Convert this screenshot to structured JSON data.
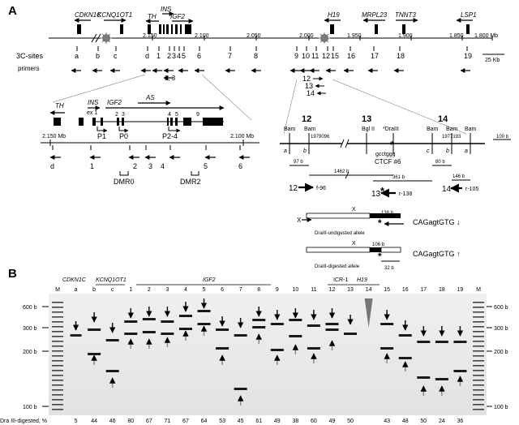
{
  "panel_a": {
    "label": "A",
    "genes": [
      {
        "name": "CDKN1C"
      },
      {
        "name": "KCNQ1OT1"
      },
      {
        "name": "TH"
      },
      {
        "name": "INS"
      },
      {
        "name": "IGF2"
      },
      {
        "name": "H19"
      },
      {
        "name": "MRPL23"
      },
      {
        "name": "TNNT3"
      },
      {
        "name": "LSP1"
      }
    ],
    "coord_ticks": [
      "2.150",
      "2.100",
      "2.050",
      "2.000",
      "1.950",
      "1.900",
      "1.850",
      "1.800 Mb"
    ],
    "sites_label": "3C-sites",
    "sites": [
      "a",
      "b",
      "c",
      "d",
      "1",
      "2",
      "3",
      "4",
      "5",
      "6",
      "7",
      "8",
      "9",
      "10",
      "11",
      "12",
      "15",
      "16",
      "17",
      "18",
      "19"
    ],
    "primers_label": "primers",
    "primer_pair": [
      "2",
      "3"
    ],
    "primer_stack": [
      "12",
      "13",
      "14"
    ],
    "scale_label": "25 Kb",
    "left_zoom": {
      "genes": [
        "TH",
        "INS",
        "IGF2",
        "AS"
      ],
      "exon_label": "ex 1",
      "exon_numbers": [
        "2",
        "3",
        "4",
        "5",
        "9"
      ],
      "promoters": [
        "P1",
        "P0",
        "P2-4"
      ],
      "ticks": [
        "2.150 Mb",
        "2.100 Mb"
      ],
      "sites": [
        "d",
        "1",
        "2",
        "3",
        "4",
        "5",
        "6"
      ],
      "dmrs": [
        "DMR0",
        "DMR2"
      ]
    },
    "right_zoom": {
      "headers": [
        "12",
        "13",
        "14"
      ],
      "sites": [
        "Bam",
        "Bam",
        "Bgl II",
        "*DraIII",
        "Bam",
        "Bam",
        "Bam"
      ],
      "coords": [
        "1979096",
        "1977193"
      ],
      "letters": [
        "a",
        "b",
        "c",
        "b",
        "a"
      ],
      "motif": "gcctggg",
      "ctcf": "CTCF #6",
      "sizes": [
        "97 b",
        "1462 b",
        "361 b",
        "80 b",
        "146 b",
        "100 b"
      ],
      "primers": [
        {
          "num": "12",
          "name": "f-96"
        },
        {
          "num": "13",
          "name": "r-138"
        },
        {
          "num": "14",
          "name": "r-105"
        }
      ],
      "x_label": "X",
      "alleles": [
        {
          "label": "DraIII-undigested allele",
          "size": "138 b",
          "seq": "CAGagtGTG"
        },
        {
          "label": "DraIII-digested allele",
          "size": "106 b",
          "seq": "CAGagtGTG"
        }
      ],
      "small_size": "32 b"
    }
  },
  "panel_b": {
    "label": "B",
    "gene_labels": [
      "CDKN1C",
      "KCNQ1OT1",
      "IGF2",
      "ICR-1",
      "H19"
    ],
    "lanes": [
      "M",
      "a",
      "b",
      "c",
      "1",
      "2",
      "3",
      "4",
      "5",
      "6",
      "7",
      "8",
      "9",
      "10",
      "11",
      "12",
      "13",
      "14",
      "15",
      "16",
      "17",
      "18",
      "19",
      "M"
    ],
    "size_labels": [
      "600 b",
      "300 b",
      "200 b",
      "100 b"
    ],
    "footer_label": "Dra III-digested, %",
    "percents": [
      "5",
      "44",
      "46",
      "80",
      "67",
      "71",
      "67",
      "64",
      "53",
      "45",
      "61",
      "49",
      "38",
      "60",
      "49",
      "50",
      "43",
      "48",
      "50",
      "24",
      "36"
    ]
  }
}
